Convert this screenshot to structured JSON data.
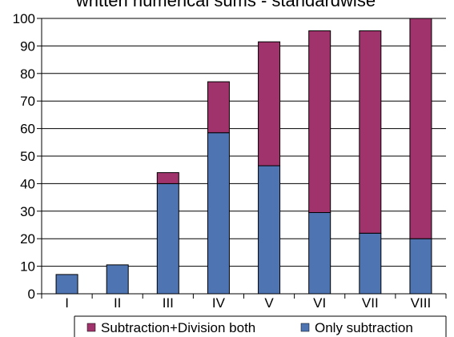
{
  "chart_data": {
    "type": "bar",
    "stacked": true,
    "title": "written numerical sums - standardwise",
    "categories": [
      "I",
      "II",
      "III",
      "IV",
      "V",
      "VI",
      "VII",
      "VIII"
    ],
    "series": [
      {
        "name": "Only subtraction",
        "color": "#4f74b2",
        "values": [
          7,
          10.5,
          40,
          58.5,
          46.5,
          29.5,
          22,
          20
        ]
      },
      {
        "name": "Subtraction+Division both",
        "color": "#a0336b",
        "values": [
          0,
          0,
          4,
          18.5,
          45,
          66,
          73.5,
          80
        ]
      }
    ],
    "ylim": [
      0,
      100
    ],
    "yticks": [
      0,
      10,
      20,
      30,
      40,
      50,
      60,
      70,
      80,
      90,
      100
    ],
    "grid": true,
    "legend_position": "bottom",
    "legend_order": [
      "Subtraction+Division both",
      "Only subtraction"
    ]
  }
}
